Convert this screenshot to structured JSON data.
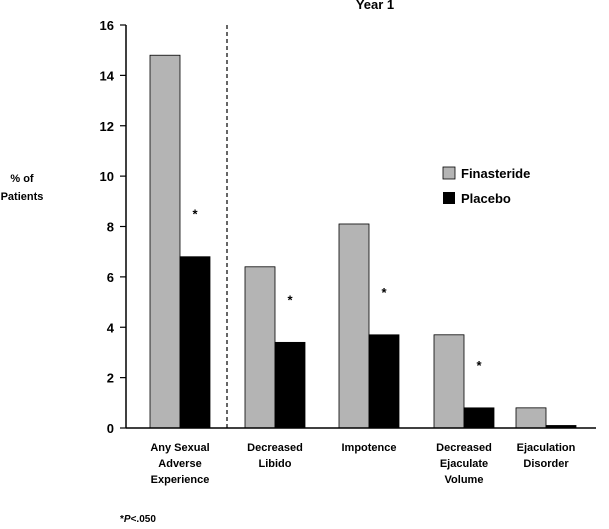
{
  "chart_data": {
    "type": "bar",
    "title": "Year 1",
    "ylabel": [
      "% of",
      "Patients"
    ],
    "ylim": [
      0,
      16
    ],
    "yticks": [
      0,
      2,
      4,
      6,
      8,
      10,
      12,
      14,
      16
    ],
    "categories": [
      [
        "Any Sexual",
        "Adverse",
        "Experience"
      ],
      [
        "Decreased",
        "Libido"
      ],
      [
        "Impotence"
      ],
      [
        "Decreased",
        "Ejaculate",
        "Volume"
      ],
      [
        "Ejaculation",
        "Disorder"
      ]
    ],
    "series": [
      {
        "name": "Finasteride",
        "color": "#b4b4b4",
        "values": [
          14.8,
          6.4,
          8.1,
          3.7,
          0.8
        ]
      },
      {
        "name": "Placebo",
        "color": "#000000",
        "values": [
          6.8,
          3.4,
          3.7,
          0.8,
          0.1
        ]
      }
    ],
    "significance_marker": "*",
    "significant": [
      true,
      true,
      true,
      true,
      false
    ],
    "divider_after_category": 0,
    "legend_placement": "right",
    "grid": false,
    "footnote": "*P<.050"
  }
}
